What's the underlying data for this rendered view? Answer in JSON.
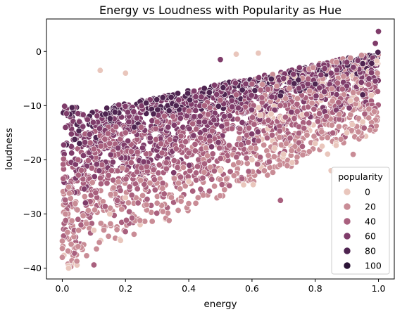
{
  "chart_data": {
    "type": "scatter",
    "title": "Energy vs Loudness with Popularity as Hue",
    "xlabel": "energy",
    "ylabel": "loudness",
    "xlim": [
      -0.05,
      1.05
    ],
    "ylim": [
      -42,
      6
    ],
    "xticks": [
      0.0,
      0.2,
      0.4,
      0.6,
      0.8,
      1.0
    ],
    "xtick_labels": [
      "0.0",
      "0.2",
      "0.4",
      "0.6",
      "0.8",
      "1.0"
    ],
    "yticks": [
      0,
      -10,
      -20,
      -30,
      -40
    ],
    "ytick_labels": [
      "0",
      "−10",
      "−20",
      "−30",
      "−40"
    ],
    "grid": false,
    "legend": {
      "title": "popularity",
      "placement": "lower-right",
      "entries": [
        {
          "label": "0",
          "value": 0,
          "color": "#e9c6bc"
        },
        {
          "label": "20",
          "value": 20,
          "color": "#c98c96"
        },
        {
          "label": "40",
          "value": 40,
          "color": "#a9607e"
        },
        {
          "label": "60",
          "value": 60,
          "color": "#7f3c6a"
        },
        {
          "label": "80",
          "value": 80,
          "color": "#4e2450"
        },
        {
          "label": "100",
          "value": 100,
          "color": "#2b1436"
        }
      ]
    },
    "marker_edge_color": "#ffffff",
    "points": [
      [
        0.95,
        -8,
        75
      ],
      [
        0.97,
        -5,
        70
      ],
      [
        1.0,
        3.7,
        60
      ],
      [
        0.99,
        1.5,
        55
      ],
      [
        0.9,
        -2,
        65
      ],
      [
        0.85,
        -4,
        70
      ],
      [
        0.8,
        -6,
        75
      ],
      [
        0.75,
        -3,
        60
      ],
      [
        0.7,
        -5,
        55
      ],
      [
        0.65,
        -7,
        50
      ],
      [
        0.6,
        -6,
        50
      ],
      [
        0.55,
        -8,
        50
      ],
      [
        0.5,
        -9,
        50
      ],
      [
        0.45,
        -10,
        45
      ],
      [
        0.4,
        -11,
        45
      ],
      [
        0.35,
        -12,
        45
      ],
      [
        0.3,
        -13,
        45
      ],
      [
        0.25,
        -14,
        40
      ],
      [
        0.2,
        -15,
        40
      ],
      [
        0.15,
        -17,
        40
      ],
      [
        0.1,
        -18,
        35
      ],
      [
        0.05,
        -20,
        35
      ],
      [
        0.02,
        -25,
        30
      ],
      [
        0.01,
        -30,
        25
      ],
      [
        0.0,
        -35,
        20
      ],
      [
        0.0,
        -38,
        15
      ],
      [
        0.02,
        -40,
        10
      ],
      [
        0.05,
        -36,
        20
      ],
      [
        0.1,
        -33,
        10
      ],
      [
        0.15,
        -30,
        10
      ],
      [
        0.2,
        -27,
        10
      ],
      [
        0.3,
        -28,
        20
      ],
      [
        0.4,
        -24,
        10
      ],
      [
        0.5,
        -22,
        10
      ],
      [
        0.6,
        -20,
        5
      ],
      [
        0.7,
        -19,
        10
      ],
      [
        0.8,
        -17,
        5
      ],
      [
        0.9,
        -15,
        10
      ],
      [
        0.95,
        -13,
        5
      ],
      [
        0.85,
        -22,
        10
      ],
      [
        0.92,
        -19,
        15
      ],
      [
        0.69,
        -27.5,
        50
      ],
      [
        0.1,
        -39.4,
        40
      ],
      [
        0.55,
        -0.5,
        10
      ],
      [
        0.62,
        -0.3,
        10
      ],
      [
        0.5,
        -1.5,
        60
      ],
      [
        0.2,
        -4,
        10
      ],
      [
        0.12,
        -3.5,
        5
      ]
    ]
  }
}
